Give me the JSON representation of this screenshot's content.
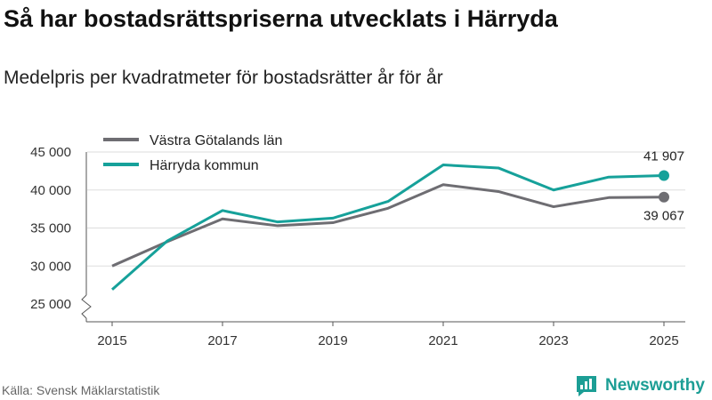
{
  "title": "Så har bostadsrättspriserna utvecklats i Härryda",
  "subtitle": "Medelpris per kvadratmeter för bostadsrätter år för år",
  "source": "Källa: Svensk Mäklarstatistik",
  "brand": "Newsworthy",
  "colors": {
    "vastra": "#6e6d72",
    "harryda": "#16a19a",
    "axis": "#555555",
    "grid": "#dddddd",
    "brand": "#1c9e95"
  },
  "chart_data": {
    "type": "line",
    "title": "Så har bostadsrättspriserna utvecklats i Härryda",
    "subtitle": "Medelpris per kvadratmeter för bostadsrätter år för år",
    "xlabel": "",
    "ylabel": "",
    "ylim": [
      25000,
      45000
    ],
    "y_ticks": [
      {
        "value": 25000,
        "label": "25 000"
      },
      {
        "value": 30000,
        "label": "30 000"
      },
      {
        "value": 35000,
        "label": "35 000"
      },
      {
        "value": 40000,
        "label": "40 000"
      },
      {
        "value": 45000,
        "label": "45 000"
      }
    ],
    "x": [
      2015,
      2016,
      2017,
      2018,
      2019,
      2020,
      2021,
      2022,
      2023,
      2024,
      2025
    ],
    "x_ticks": [
      {
        "value": 2015,
        "label": "2015"
      },
      {
        "value": 2017,
        "label": "2017"
      },
      {
        "value": 2019,
        "label": "2019"
      },
      {
        "value": 2021,
        "label": "2021"
      },
      {
        "value": 2023,
        "label": "2023"
      },
      {
        "value": 2025,
        "label": "2025"
      }
    ],
    "legend_position": "top-left",
    "series": [
      {
        "name": "Västra Götalands län",
        "color": "#6e6d72",
        "values": [
          30000,
          33200,
          36200,
          35300,
          35700,
          37600,
          40700,
          39800,
          37800,
          39000,
          39067
        ],
        "end_label": "39 067"
      },
      {
        "name": "Härryda kommun",
        "color": "#16a19a",
        "values": [
          26900,
          33300,
          37300,
          35800,
          36300,
          38500,
          43300,
          42900,
          40000,
          41700,
          41907
        ],
        "end_label": "41 907"
      }
    ]
  }
}
